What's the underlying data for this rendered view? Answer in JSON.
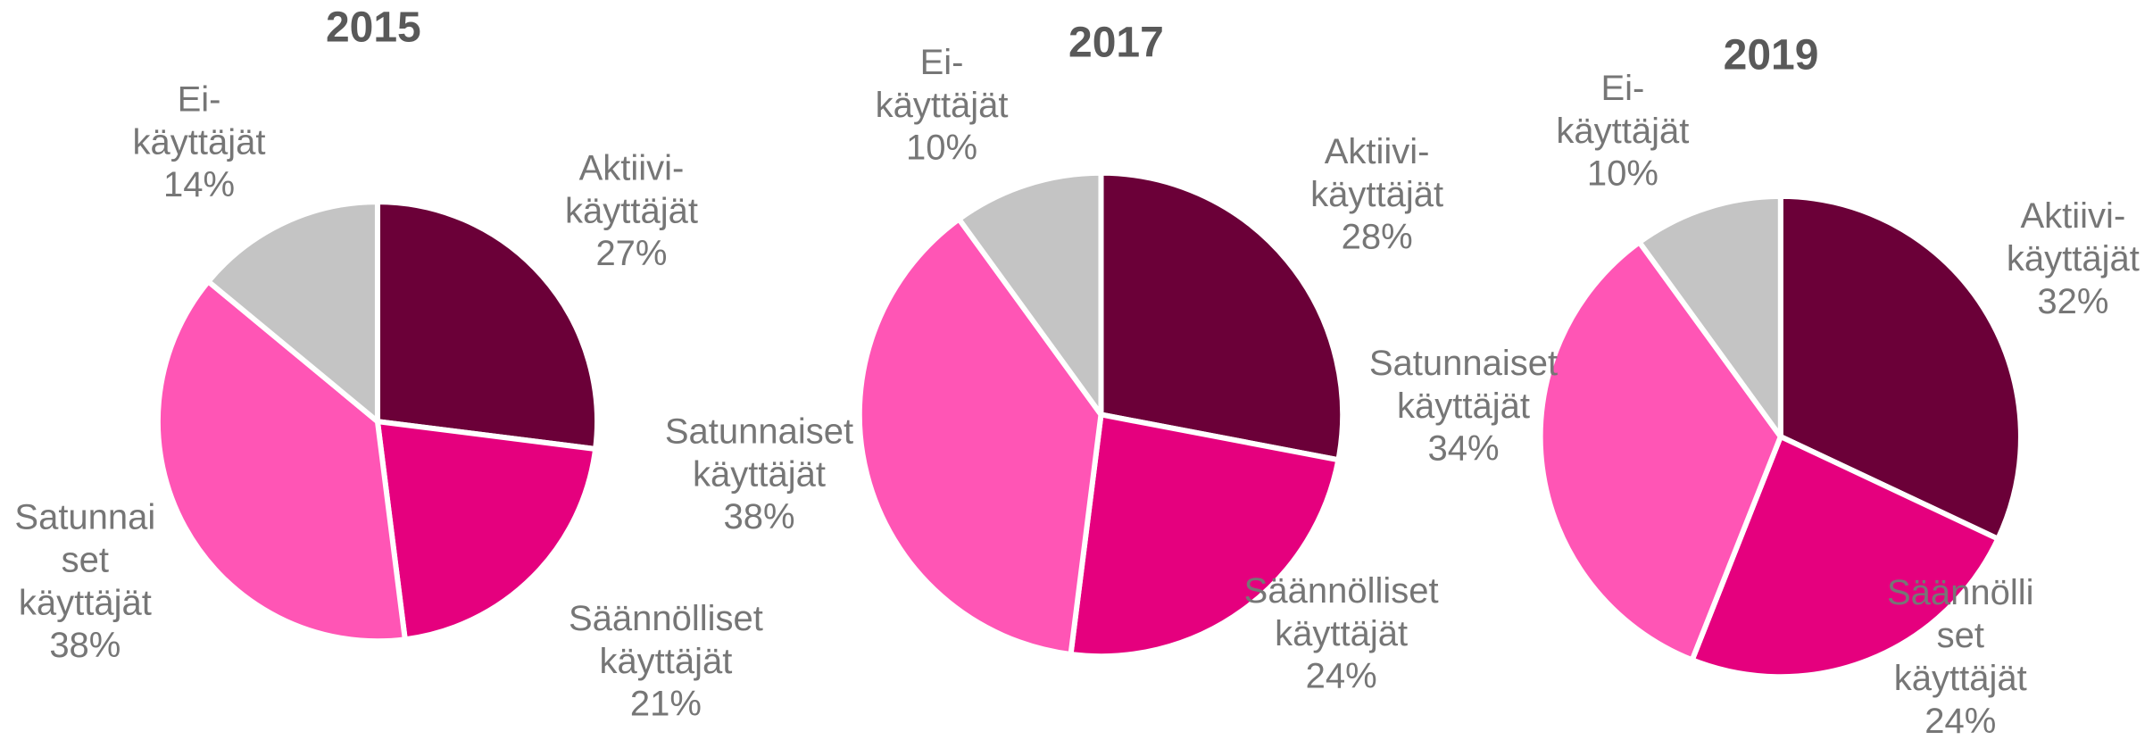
{
  "chart_data": [
    {
      "type": "pie",
      "title": "2015",
      "categories": [
        "Aktiivi-\nkäyttäjät",
        "Säännölliset\nkäyttäjät",
        "Satunnai\nset\nkäyttäjät",
        "Ei-\nkäyttäjät"
      ],
      "values": [
        27,
        21,
        38,
        14
      ],
      "value_labels": [
        "27%",
        "21%",
        "38%",
        "14%"
      ],
      "colors": [
        "#6b0038",
        "#e5007e",
        "#ff55b5",
        "#c4c4c4"
      ]
    },
    {
      "type": "pie",
      "title": "2017",
      "categories": [
        "Aktiivi-\nkäyttäjät",
        "Säännölliset\nkäyttäjät",
        "Satunnaiset\nkäyttäjät",
        "Ei-\nkäyttäjät"
      ],
      "values": [
        28,
        24,
        38,
        10
      ],
      "value_labels": [
        "28%",
        "24%",
        "38%",
        "10%"
      ],
      "colors": [
        "#6b0038",
        "#e5007e",
        "#ff55b5",
        "#c4c4c4"
      ]
    },
    {
      "type": "pie",
      "title": "2019",
      "categories": [
        "Aktiivi-\nkäyttäjät",
        "Säännölli\nset\nkäyttäjät",
        "Satunnaiset\nkäyttäjät",
        "Ei-\nkäyttäjät"
      ],
      "values": [
        32,
        24,
        34,
        10
      ],
      "value_labels": [
        "32%",
        "24%",
        "34%",
        "10%"
      ],
      "colors": [
        "#6b0038",
        "#e5007e",
        "#ff55b5",
        "#c4c4c4"
      ]
    }
  ]
}
